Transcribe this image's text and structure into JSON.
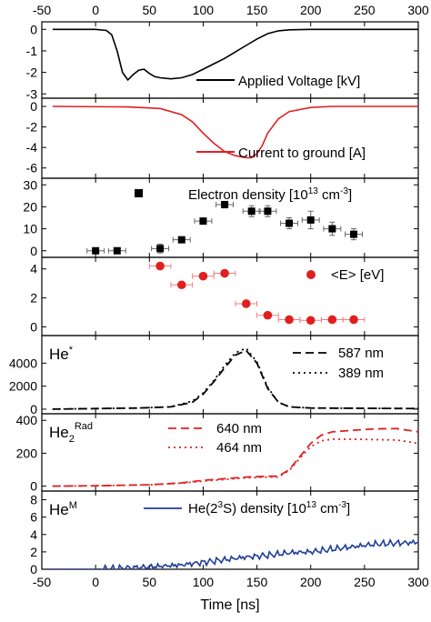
{
  "chart_data": {
    "type": "multi-panel",
    "x_axis": {
      "label": "Time [ns]",
      "range": [
        -50,
        300
      ],
      "ticks": [
        "-50",
        "0",
        "50",
        "100",
        "150",
        "200",
        "250",
        "300"
      ]
    },
    "panels": [
      {
        "id": "voltage",
        "type": "line",
        "ylim": [
          -3.2,
          0.35
        ],
        "yticks": [
          0,
          -1,
          -2,
          -3
        ],
        "ytick_labels": [
          "0",
          "-1",
          "-2",
          "-3"
        ],
        "legend": [
          {
            "label": "Applied Voltage [kV]",
            "style": "solid",
            "color": "#000000"
          }
        ],
        "series": [
          {
            "name": "Applied Voltage [kV]",
            "color": "#000000",
            "style": "solid",
            "points": [
              [
                -40,
                0.0
              ],
              [
                0,
                0.0
              ],
              [
                10,
                -0.05
              ],
              [
                15,
                -0.25
              ],
              [
                20,
                -1.0
              ],
              [
                25,
                -2.0
              ],
              [
                30,
                -2.35
              ],
              [
                35,
                -2.1
              ],
              [
                40,
                -1.9
              ],
              [
                45,
                -1.85
              ],
              [
                50,
                -2.05
              ],
              [
                55,
                -2.2
              ],
              [
                60,
                -2.25
              ],
              [
                70,
                -2.3
              ],
              [
                80,
                -2.25
              ],
              [
                90,
                -2.1
              ],
              [
                100,
                -1.85
              ],
              [
                110,
                -1.6
              ],
              [
                120,
                -1.35
              ],
              [
                130,
                -1.05
              ],
              [
                140,
                -0.75
              ],
              [
                150,
                -0.45
              ],
              [
                160,
                -0.2
              ],
              [
                170,
                -0.07
              ],
              [
                180,
                -0.02
              ],
              [
                200,
                0.0
              ],
              [
                300,
                0.0
              ]
            ]
          }
        ]
      },
      {
        "id": "current",
        "type": "line",
        "ylim": [
          -7.0,
          0.8
        ],
        "yticks": [
          0,
          -2,
          -4,
          -6
        ],
        "ytick_labels": [
          "0",
          "-2",
          "-4",
          "-6"
        ],
        "legend": [
          {
            "label": "Current to ground [A]",
            "style": "solid",
            "color": "#e02020"
          }
        ],
        "series": [
          {
            "name": "Current to ground [A]",
            "color": "#e02020",
            "style": "solid",
            "points": [
              [
                -40,
                0.0
              ],
              [
                30,
                -0.05
              ],
              [
                60,
                -0.2
              ],
              [
                80,
                -0.8
              ],
              [
                90,
                -1.5
              ],
              [
                100,
                -2.6
              ],
              [
                110,
                -3.6
              ],
              [
                120,
                -4.4
              ],
              [
                130,
                -4.8
              ],
              [
                140,
                -5.0
              ],
              [
                145,
                -5.0
              ],
              [
                150,
                -4.6
              ],
              [
                155,
                -3.8
              ],
              [
                160,
                -2.6
              ],
              [
                170,
                -1.2
              ],
              [
                180,
                -0.5
              ],
              [
                200,
                -0.1
              ],
              [
                220,
                0.0
              ],
              [
                300,
                0.0
              ]
            ]
          }
        ]
      },
      {
        "id": "density",
        "type": "scatter",
        "ylim": [
          -3,
          33
        ],
        "yticks": [
          0,
          10,
          20,
          30
        ],
        "ytick_labels": [
          "0",
          "10",
          "20",
          "30"
        ],
        "legend": [
          {
            "label_parts": [
              "Electron density [10",
              "13",
              " cm",
              "-3",
              "]"
            ],
            "marker": "square",
            "color": "#000000"
          }
        ],
        "series": [
          {
            "name": "Electron density",
            "color": "#000000",
            "marker": "square",
            "xerr": 8,
            "points": [
              [
                0,
                0,
                0
              ],
              [
                20,
                0,
                0
              ],
              [
                60,
                1,
                2
              ],
              [
                80,
                5,
                1
              ],
              [
                100,
                13.5,
                1
              ],
              [
                120,
                21,
                1.5
              ],
              [
                145,
                18,
                2.5
              ],
              [
                160,
                18,
                2.5
              ],
              [
                180,
                12.5,
                2.5
              ],
              [
                200,
                14,
                4
              ],
              [
                220,
                10,
                3
              ],
              [
                240,
                7.5,
                2.5
              ]
            ]
          }
        ]
      },
      {
        "id": "energy",
        "type": "scatter",
        "ylim": [
          -0.6,
          4.8
        ],
        "yticks": [
          0,
          2,
          4
        ],
        "ytick_labels": [
          "0",
          "2",
          "4"
        ],
        "legend": [
          {
            "label": "<E> [eV]",
            "marker": "circle",
            "color": "#e02020"
          }
        ],
        "series": [
          {
            "name": "<E> [eV]",
            "color": "#e02020",
            "marker": "circle",
            "xerr": 10,
            "points": [
              [
                60,
                4.2,
                0
              ],
              [
                80,
                2.9,
                0
              ],
              [
                100,
                3.5,
                0.2
              ],
              [
                120,
                3.7,
                0.2
              ],
              [
                140,
                1.6,
                0.2
              ],
              [
                160,
                0.8,
                0.2
              ],
              [
                180,
                0.5,
                0
              ],
              [
                200,
                0.45,
                0
              ],
              [
                220,
                0.5,
                0
              ],
              [
                240,
                0.5,
                0
              ]
            ]
          }
        ]
      },
      {
        "id": "he",
        "type": "line",
        "species_label": {
          "base": "He",
          "sup": "*",
          "sub": ""
        },
        "ylim": [
          -400,
          6400
        ],
        "yticks": [
          0,
          2000,
          4000
        ],
        "ytick_labels": [
          "0",
          "2000",
          "4000"
        ],
        "legend": [
          {
            "label": "587 nm",
            "style": "dash",
            "color": "#000000"
          },
          {
            "label": "389 nm",
            "style": "dot",
            "color": "#000000"
          }
        ],
        "series": [
          {
            "name": "587 nm",
            "color": "#000000",
            "style": "dash",
            "points": [
              [
                -40,
                0
              ],
              [
                0,
                50
              ],
              [
                40,
                100
              ],
              [
                70,
                200
              ],
              [
                90,
                600
              ],
              [
                100,
                1300
              ],
              [
                110,
                2400
              ],
              [
                120,
                3600
              ],
              [
                130,
                4700
              ],
              [
                140,
                5100
              ],
              [
                150,
                4000
              ],
              [
                160,
                1800
              ],
              [
                170,
                600
              ],
              [
                180,
                200
              ],
              [
                200,
                100
              ],
              [
                300,
                50
              ]
            ]
          },
          {
            "name": "389 nm",
            "color": "#000000",
            "style": "dot",
            "points": [
              [
                -40,
                0
              ],
              [
                0,
                50
              ],
              [
                40,
                100
              ],
              [
                70,
                200
              ],
              [
                90,
                700
              ],
              [
                100,
                1400
              ],
              [
                110,
                2500
              ],
              [
                120,
                3800
              ],
              [
                130,
                4900
              ],
              [
                140,
                5300
              ],
              [
                150,
                4100
              ],
              [
                160,
                1900
              ],
              [
                170,
                600
              ],
              [
                180,
                200
              ],
              [
                200,
                100
              ],
              [
                300,
                50
              ]
            ]
          }
        ]
      },
      {
        "id": "he2",
        "type": "line",
        "species_label": {
          "base": "He",
          "sup": "Rad",
          "sub": "2"
        },
        "ylim": [
          -30,
          440
        ],
        "yticks": [
          0,
          200,
          400
        ],
        "ytick_labels": [
          "0",
          "200",
          "400"
        ],
        "legend": [
          {
            "label": "640 nm",
            "style": "dash",
            "color": "#e02020"
          },
          {
            "label": "464 nm",
            "style": "dot",
            "color": "#e02020"
          }
        ],
        "series": [
          {
            "name": "640 nm",
            "color": "#e02020",
            "style": "dash",
            "points": [
              [
                -40,
                0
              ],
              [
                0,
                2
              ],
              [
                50,
                8
              ],
              [
                80,
                20
              ],
              [
                100,
                35
              ],
              [
                120,
                45
              ],
              [
                140,
                55
              ],
              [
                160,
                60
              ],
              [
                170,
                60
              ],
              [
                180,
                100
              ],
              [
                190,
                180
              ],
              [
                200,
                260
              ],
              [
                210,
                310
              ],
              [
                220,
                330
              ],
              [
                240,
                340
              ],
              [
                260,
                348
              ],
              [
                280,
                350
              ],
              [
                290,
                340
              ],
              [
                300,
                330
              ]
            ]
          },
          {
            "name": "464 nm",
            "color": "#e02020",
            "style": "dot",
            "points": [
              [
                -40,
                0
              ],
              [
                0,
                2
              ],
              [
                50,
                8
              ],
              [
                80,
                18
              ],
              [
                100,
                30
              ],
              [
                120,
                40
              ],
              [
                140,
                50
              ],
              [
                160,
                55
              ],
              [
                170,
                55
              ],
              [
                180,
                95
              ],
              [
                190,
                170
              ],
              [
                200,
                240
              ],
              [
                210,
                275
              ],
              [
                220,
                285
              ],
              [
                240,
                285
              ],
              [
                260,
                283
              ],
              [
                280,
                280
              ],
              [
                290,
                270
              ],
              [
                300,
                260
              ]
            ]
          }
        ]
      },
      {
        "id": "hem",
        "type": "line",
        "species_label": {
          "base": "He",
          "sup": "M",
          "sub": ""
        },
        "ylim": [
          0,
          9
        ],
        "yticks": [
          0,
          2,
          4,
          6,
          8
        ],
        "ytick_labels": [
          "0",
          "2",
          "4",
          "6",
          "8"
        ],
        "legend": [
          {
            "label_parts": [
              "He(2",
              "3",
              "S) density [10",
              "13",
              " cm",
              "-3",
              "]"
            ],
            "style": "solid",
            "color": "#1f3d99"
          }
        ],
        "series": [
          {
            "name": "He(2^3S) density",
            "color": "#1f3d99",
            "style": "solid",
            "noisy": true,
            "points": [
              [
                -40,
                0.0
              ],
              [
                0,
                0.0
              ],
              [
                40,
                0.2
              ],
              [
                80,
                0.5
              ],
              [
                100,
                0.8
              ],
              [
                120,
                1.1
              ],
              [
                140,
                1.4
              ],
              [
                160,
                1.6
              ],
              [
                180,
                1.9
              ],
              [
                200,
                2.0
              ],
              [
                220,
                2.3
              ],
              [
                240,
                2.6
              ],
              [
                260,
                2.9
              ],
              [
                280,
                3.0
              ],
              [
                300,
                3.1
              ]
            ]
          }
        ]
      }
    ]
  }
}
